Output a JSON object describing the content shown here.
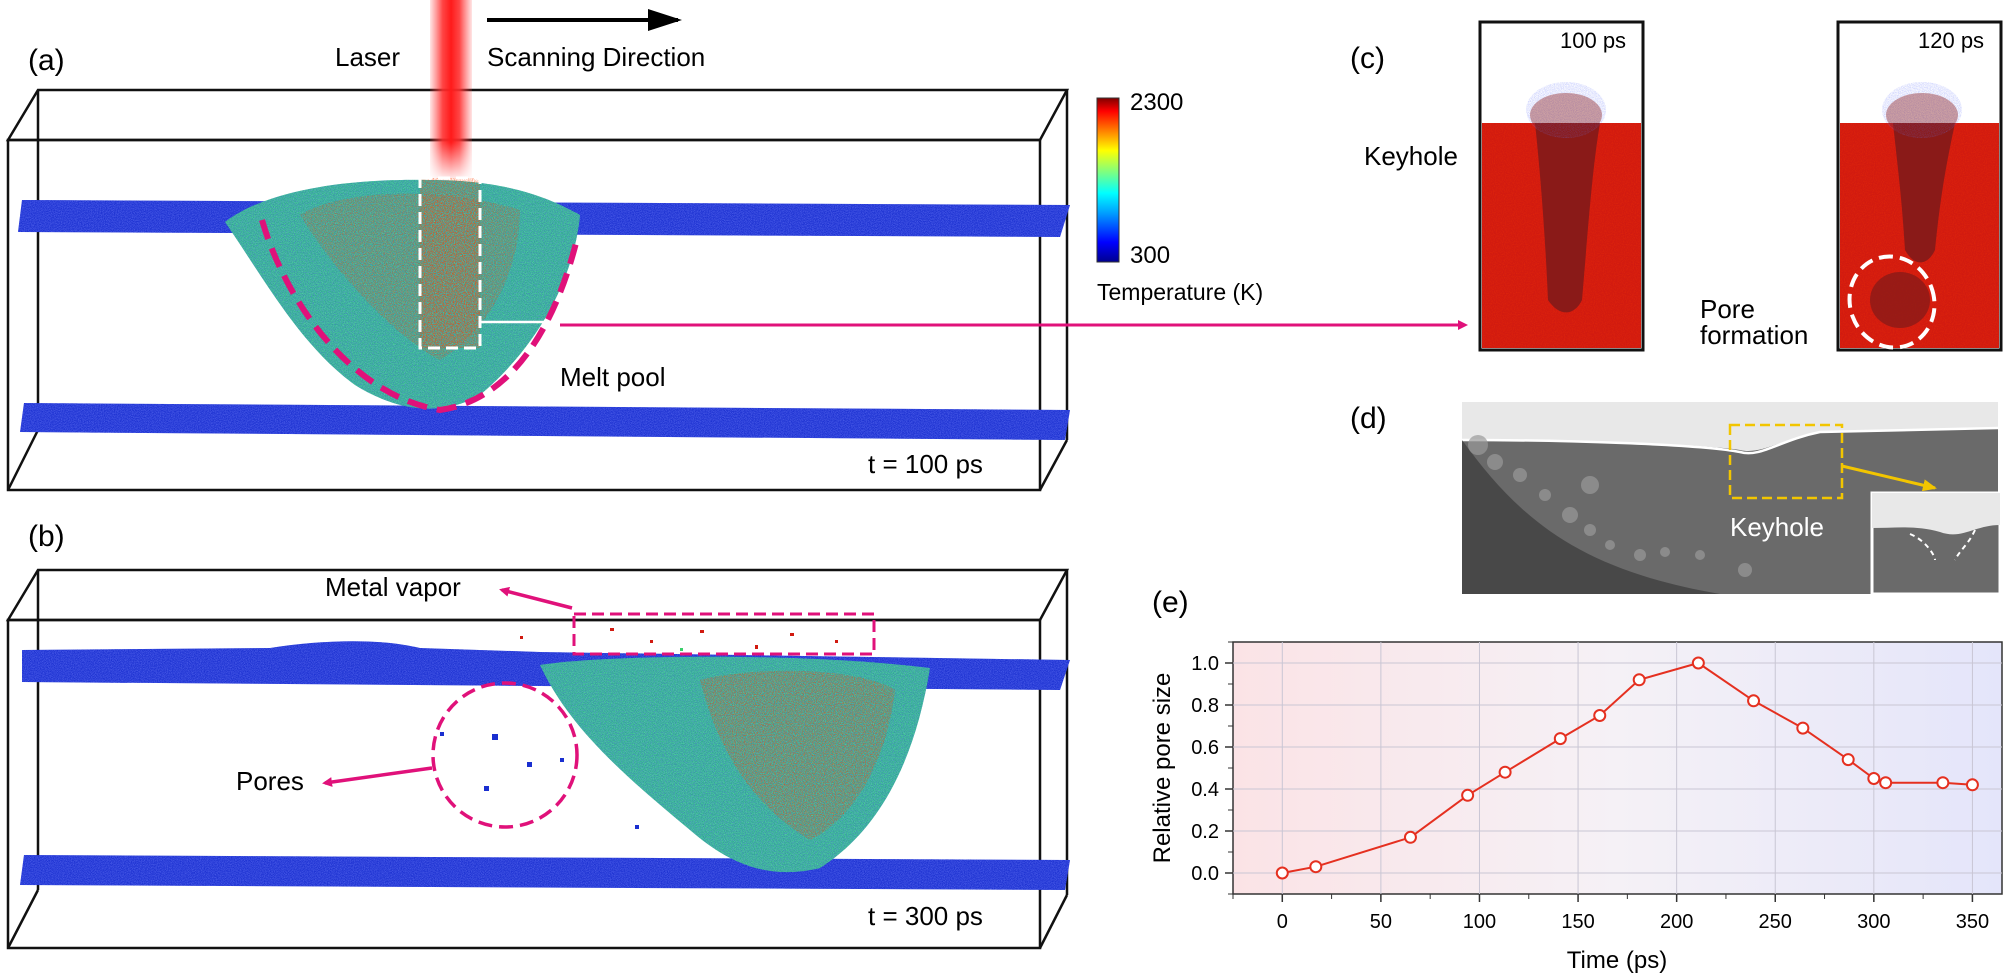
{
  "panels": {
    "a": {
      "label": "(a)",
      "laser": "Laser",
      "scanning": "Scanning Direction",
      "melt_pool": "Melt pool",
      "time": "t = 100 ps"
    },
    "b": {
      "label": "(b)",
      "metal_vapor": "Metal vapor",
      "pores": "Pores",
      "time": "t = 300 ps"
    },
    "c": {
      "label": "(c)",
      "time_left": "100 ps",
      "time_right": "120 ps",
      "keyhole": "Keyhole",
      "pore_formation_line1": "Pore",
      "pore_formation_line2": "formation"
    },
    "d": {
      "label": "(d)",
      "keyhole": "Keyhole"
    },
    "e": {
      "label": "(e)"
    }
  },
  "colorbar": {
    "max": "2300",
    "min": "300",
    "title": "Temperature (K)",
    "stops": [
      "#00008f",
      "#0000ff",
      "#00a0ff",
      "#00ffff",
      "#7fff7f",
      "#ffff00",
      "#ff8000",
      "#ff0000",
      "#800000"
    ]
  },
  "colors": {
    "accent": "#e0117a",
    "atom_blue": "#1a2fd0",
    "melt_red": "#d11a10",
    "series": "#e53020"
  },
  "chart_data": {
    "type": "line",
    "title": "",
    "xlabel": "Time (ps)",
    "ylabel": "Relative pore size",
    "xlim": [
      -25,
      365
    ],
    "ylim": [
      -0.1,
      1.1
    ],
    "xticks": [
      "0",
      "50",
      "100",
      "150",
      "200",
      "250",
      "300",
      "350"
    ],
    "yticks": [
      "0.0",
      "0.2",
      "0.4",
      "0.6",
      "0.8",
      "1.0"
    ],
    "series": [
      {
        "name": "Relative pore size",
        "x": [
          0,
          17,
          65,
          94,
          113,
          141,
          161,
          181,
          211,
          239,
          264,
          287,
          300,
          306,
          335,
          350
        ],
        "y": [
          0.0,
          0.03,
          0.17,
          0.37,
          0.48,
          0.64,
          0.75,
          0.92,
          1.0,
          0.82,
          0.69,
          0.54,
          0.45,
          0.43,
          0.43,
          0.42
        ]
      }
    ]
  }
}
